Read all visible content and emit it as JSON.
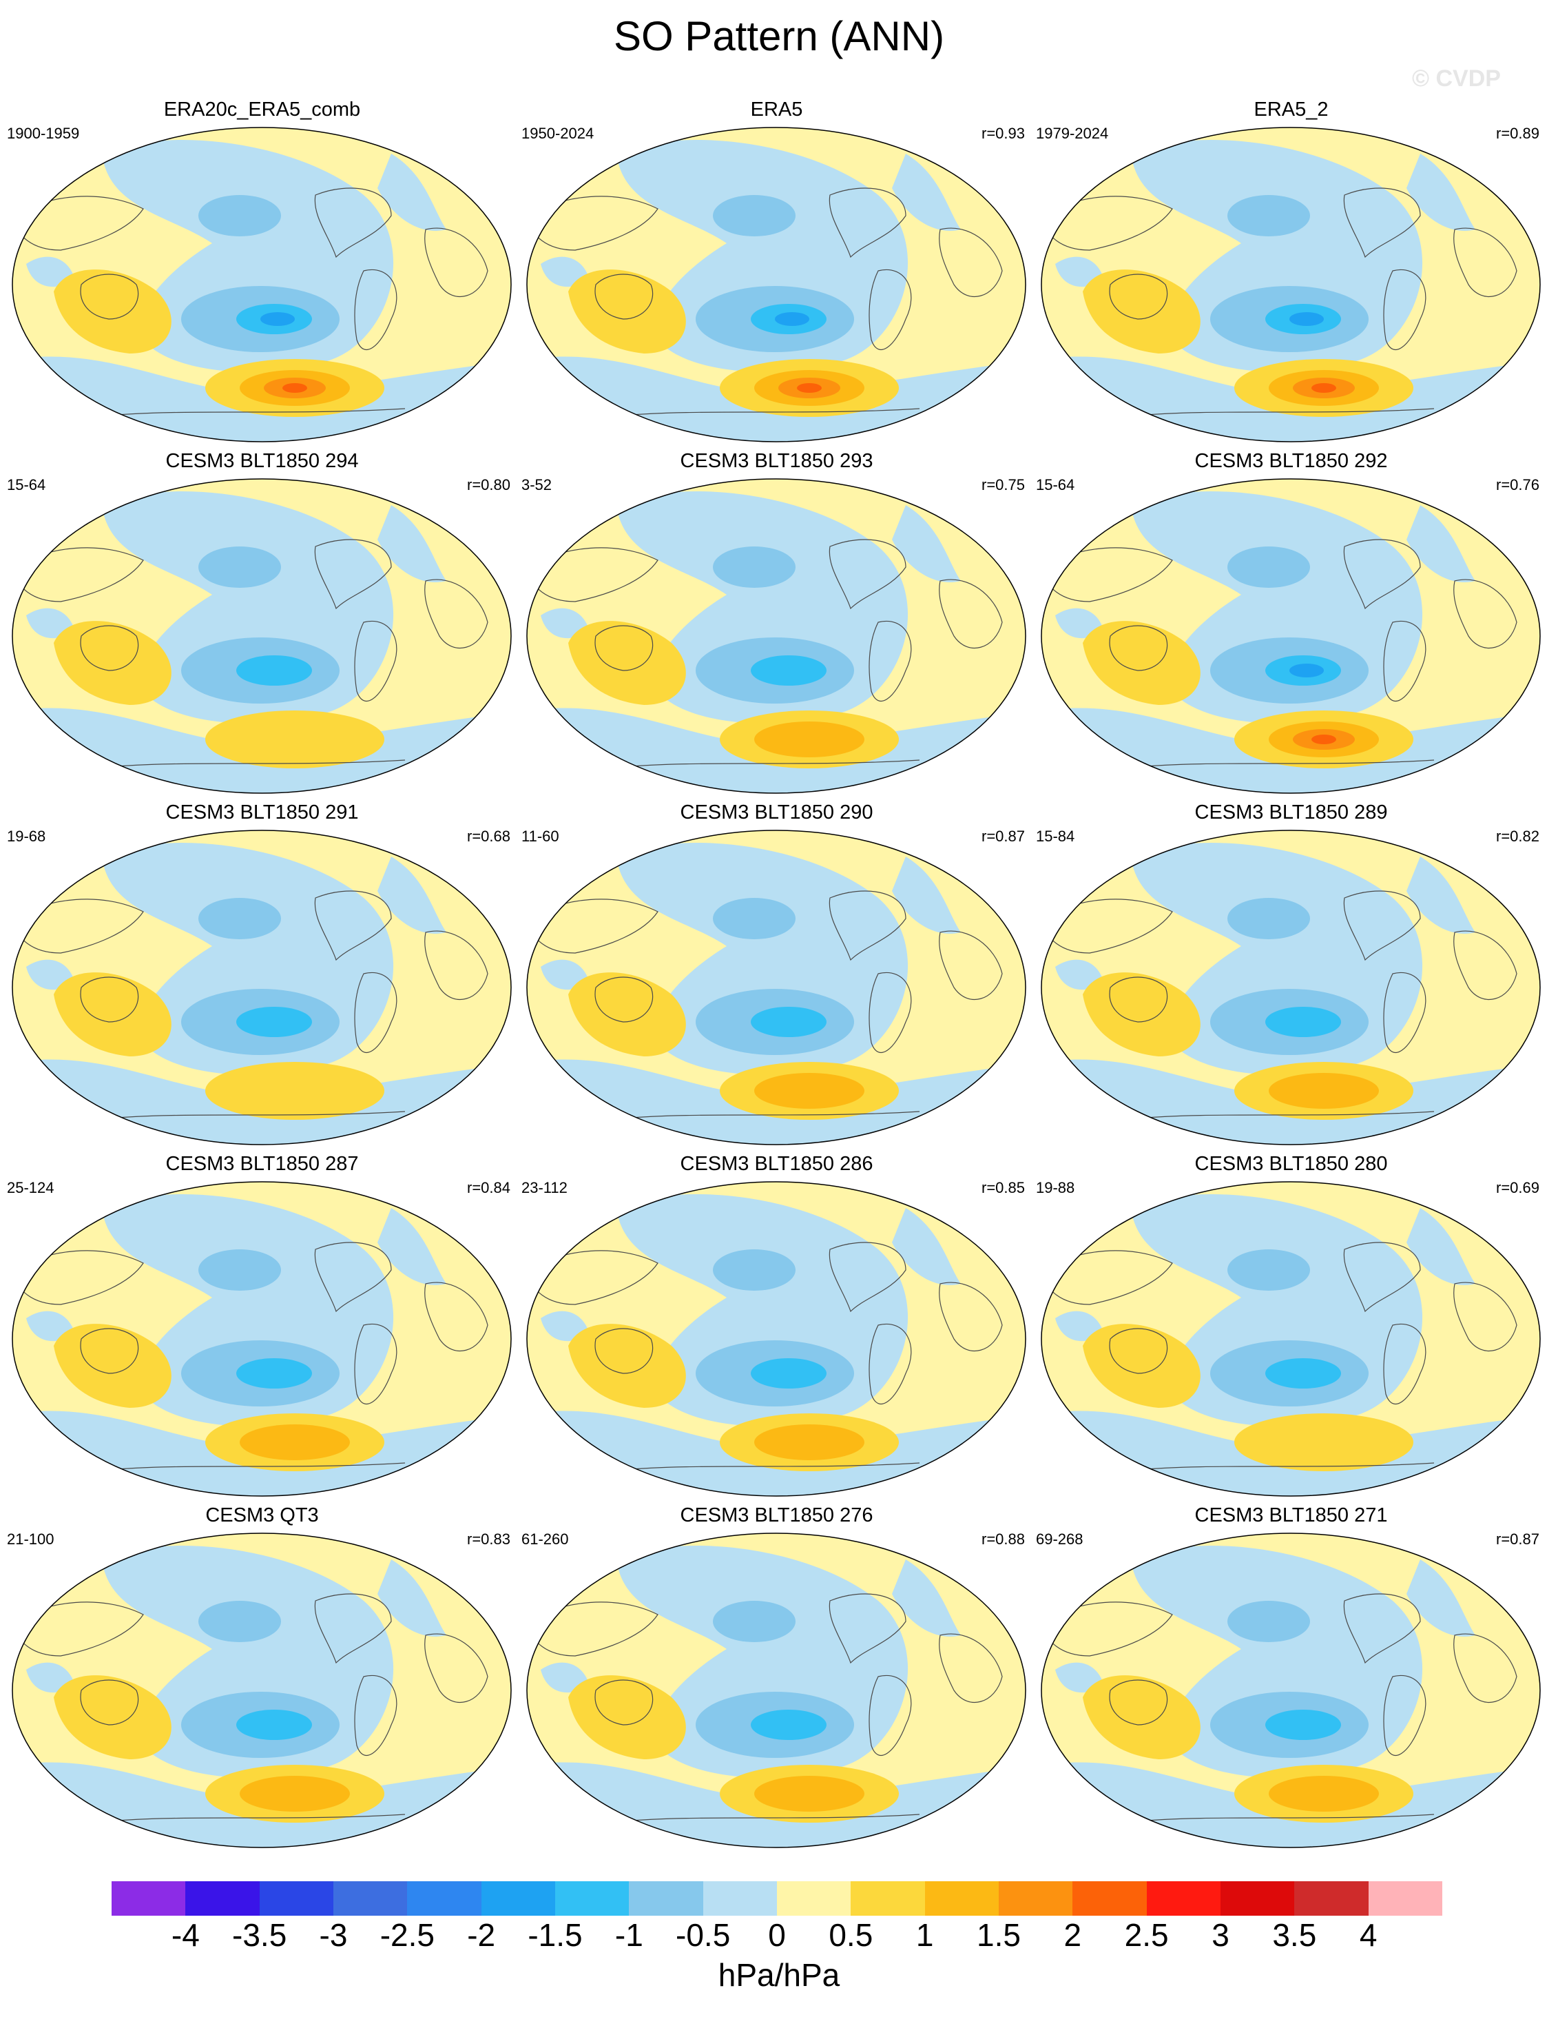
{
  "title": "SO Pattern (ANN)",
  "watermark": "© CVDP",
  "panels": [
    {
      "title": "ERA20c_ERA5_comb",
      "period": "1900-1959",
      "corr": ""
    },
    {
      "title": "ERA5",
      "period": "1950-2024",
      "corr": "r=0.93"
    },
    {
      "title": "ERA5_2",
      "period": "1979-2024",
      "corr": "r=0.89"
    },
    {
      "title": "CESM3 BLT1850 294",
      "period": "15-64",
      "corr": "r=0.80"
    },
    {
      "title": "CESM3 BLT1850 293",
      "period": "3-52",
      "corr": "r=0.75"
    },
    {
      "title": "CESM3 BLT1850 292",
      "period": "15-64",
      "corr": "r=0.76"
    },
    {
      "title": "CESM3 BLT1850 291",
      "period": "19-68",
      "corr": "r=0.68"
    },
    {
      "title": "CESM3 BLT1850 290",
      "period": "11-60",
      "corr": "r=0.87"
    },
    {
      "title": "CESM3 BLT1850 289",
      "period": "15-84",
      "corr": "r=0.82"
    },
    {
      "title": "CESM3 BLT1850 287",
      "period": "25-124",
      "corr": "r=0.84"
    },
    {
      "title": "CESM3 BLT1850 286",
      "period": "23-112",
      "corr": "r=0.85"
    },
    {
      "title": "CESM3 BLT1850 280",
      "period": "19-88",
      "corr": "r=0.69"
    },
    {
      "title": "CESM3 QT3",
      "period": "21-100",
      "corr": "r=0.83"
    },
    {
      "title": "CESM3 BLT1850 276",
      "period": "61-260",
      "corr": "r=0.88"
    },
    {
      "title": "CESM3 BLT1850 271",
      "period": "69-268",
      "corr": "r=0.87"
    }
  ],
  "colorbar": {
    "units": "hPa/hPa",
    "labels": [
      "-4",
      "-3.5",
      "-3",
      "-2.5",
      "-2",
      "-1.5",
      "-1",
      "-0.5",
      "0",
      "0.5",
      "1",
      "1.5",
      "2",
      "2.5",
      "3",
      "3.5",
      "4"
    ],
    "colors": [
      "#8c2ce6",
      "#3a14e8",
      "#2a46e6",
      "#3d6ee0",
      "#2e86f0",
      "#1ea2f2",
      "#32c0f4",
      "#86c8ec",
      "#b8dff3",
      "#fff5a8",
      "#fcd83c",
      "#fcb914",
      "#fc9210",
      "#fc6208",
      "#ff1a10",
      "#dd0a0a",
      "#cf2b2b",
      "#ffb3b8"
    ]
  }
}
